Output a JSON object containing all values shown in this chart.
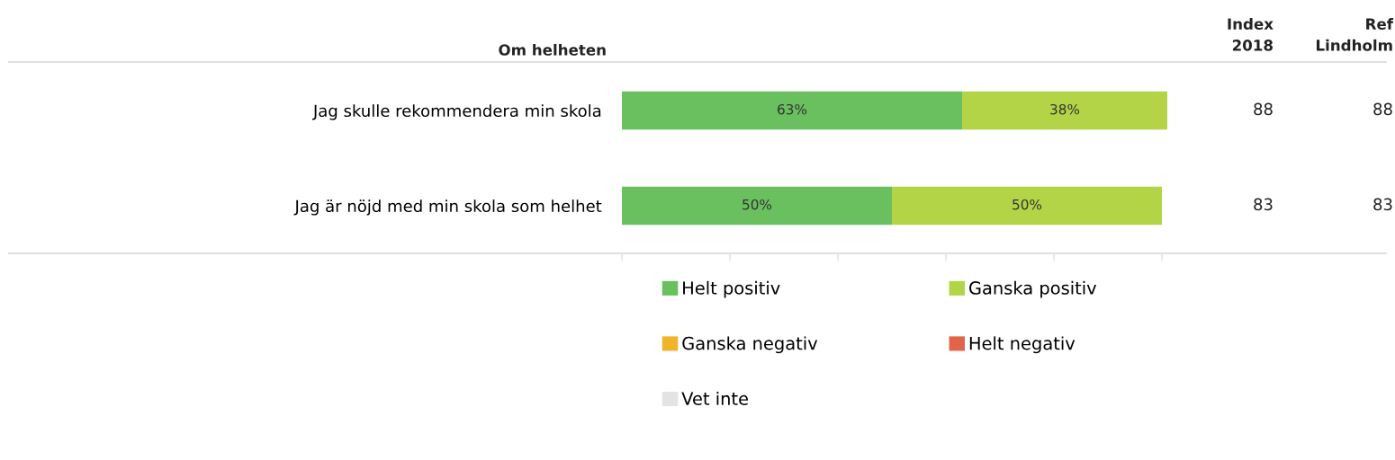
{
  "chart_data": {
    "type": "bar",
    "orientation": "horizontal",
    "stacked": true,
    "title": "Om helheten",
    "categories": [
      "Jag skulle rekommendera min skola",
      "Jag är nöjd med min skola som helhet"
    ],
    "series": [
      {
        "name": "Helt positiv",
        "color": "#6abf5f",
        "values": [
          63,
          50
        ],
        "value_labels": [
          "63%",
          "50%"
        ]
      },
      {
        "name": "Ganska positiv",
        "color": "#b3d446",
        "values": [
          38,
          50
        ],
        "value_labels": [
          "38%",
          "50%"
        ]
      },
      {
        "name": "Ganska negativ",
        "color": "#f0b42c",
        "values": [
          0,
          0
        ],
        "value_labels": [
          null,
          null
        ]
      },
      {
        "name": "Helt negativ",
        "color": "#e2654a",
        "values": [
          0,
          0
        ],
        "value_labels": [
          null,
          null
        ]
      },
      {
        "name": "Vet inte",
        "color": "#e3e3e3",
        "values": [
          0,
          0
        ],
        "value_labels": [
          null,
          null
        ]
      }
    ],
    "xlim": [
      0,
      101
    ],
    "xticks": [
      {
        "value": 0,
        "label": null
      },
      {
        "value": 20,
        "label": null
      },
      {
        "value": 40,
        "label": null
      },
      {
        "value": 60,
        "label": null
      },
      {
        "value": 80,
        "label": null
      },
      {
        "value": 100,
        "label": null
      }
    ],
    "tick_labels": "y",
    "grid": false,
    "legend": "bottom",
    "annotations": [
      "Index\n2018",
      "Ref\nLindholm",
      "88",
      "88",
      "83",
      "83"
    ]
  }
}
